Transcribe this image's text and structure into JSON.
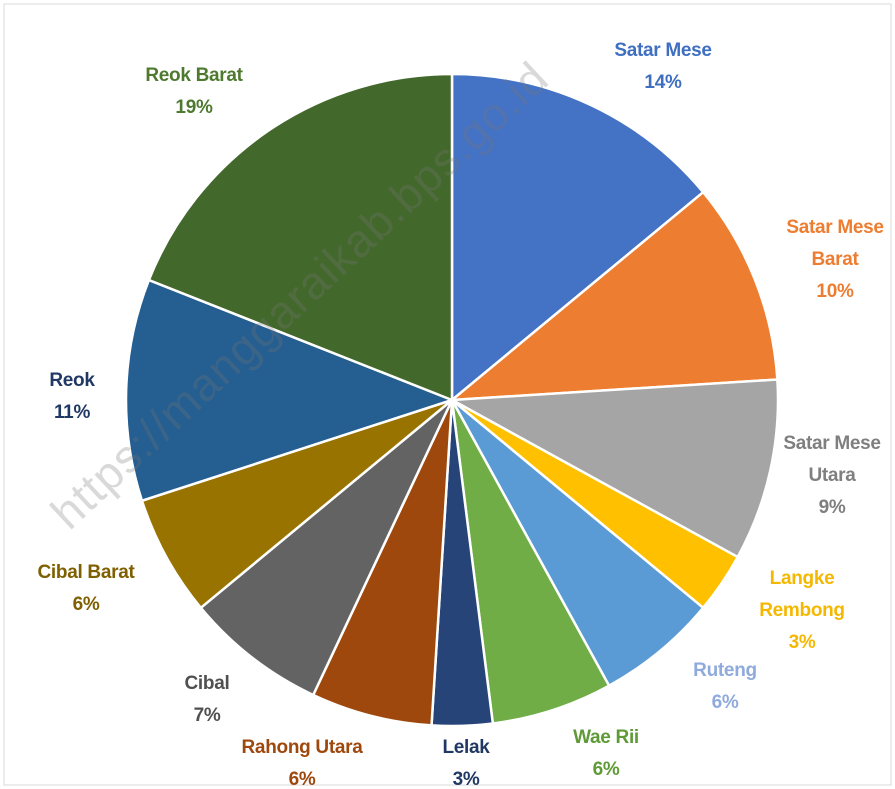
{
  "chart_data": {
    "type": "pie",
    "categories": [
      "Satar Mese",
      "Satar Mese Barat",
      "Satar Mese Utara",
      "Langke Rembong",
      "Ruteng",
      "Wae Rii",
      "Lelak",
      "Rahong Utara",
      "Cibal",
      "Cibal Barat",
      "Reok",
      "Reok Barat"
    ],
    "values": [
      14,
      10,
      9,
      3,
      6,
      6,
      3,
      6,
      7,
      6,
      11,
      19
    ],
    "value_labels": [
      "14%",
      "10%",
      "9%",
      "3%",
      "6%",
      "6%",
      "3%",
      "6%",
      "7%",
      "6%",
      "11%",
      "19%"
    ],
    "colors": [
      "#4472c4",
      "#ed7d31",
      "#a5a5a5",
      "#ffc000",
      "#5b9bd5",
      "#70ad47",
      "#264478",
      "#9e480e",
      "#636363",
      "#997300",
      "#255e91",
      "#43682b"
    ],
    "label_colors": [
      "#3f6fc0",
      "#ed7d31",
      "#7f7f7f",
      "#f5b800",
      "#8faadc",
      "#5e9a35",
      "#203864",
      "#9e480e",
      "#505050",
      "#7f6000",
      "#203864",
      "#4e7a30"
    ],
    "watermark": "https://manggaraikab.bps.go.id"
  }
}
